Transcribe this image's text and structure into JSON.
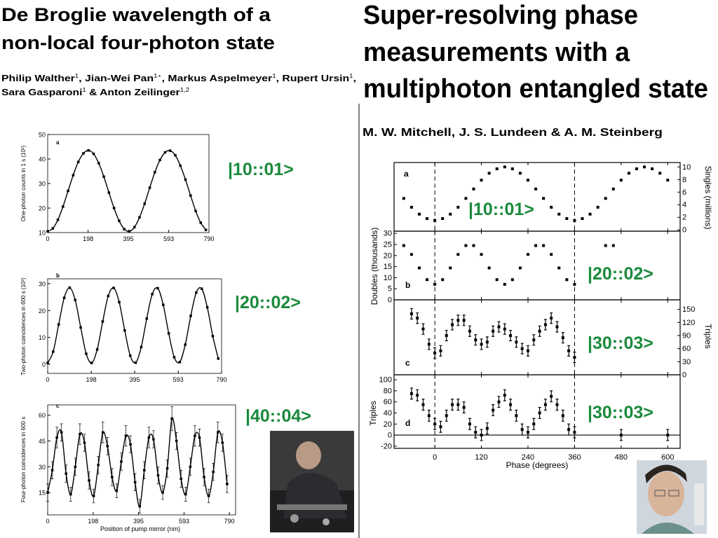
{
  "left": {
    "title": [
      "De Broglie wavelength of a",
      "non-local four-photon state"
    ],
    "authors": [
      [
        {
          "text": "Philip Walther",
          "sup": "1",
          "sep": ", "
        },
        {
          "text": "Jian-Wei Pan",
          "sup": "1⋆",
          "sep": ", "
        },
        {
          "text": "Markus Aspelmeyer",
          "sup": "1",
          "sep": ", "
        },
        {
          "text": "Rupert Ursin",
          "sup": "1",
          "sep": ","
        }
      ],
      [
        {
          "text": "Sara Gasparoni",
          "sup": "1",
          "sep": " & "
        },
        {
          "text": "Anton Zeilinger",
          "sup": "1,2",
          "sep": ""
        }
      ]
    ],
    "labels": [
      "|10::01>",
      "|20::02>",
      "|40::04>"
    ]
  },
  "right": {
    "title": [
      "Super-resolving phase",
      "measurements with a",
      "multiphoton entangled state"
    ],
    "authors": "M. W. Mitchell, J. S. Lundeen & A. M. Steinberg",
    "labels": [
      "|10::01>",
      "|20::02>",
      "|30::03>",
      "|30::03>"
    ]
  },
  "chart_data": [
    {
      "type": "line",
      "panel": "a",
      "ylabel": "One-photon counts in 1 s (10³)",
      "x": [
        0,
        25,
        50,
        75,
        100,
        125,
        150,
        175,
        200,
        225,
        250,
        275,
        300,
        325,
        350,
        375,
        400,
        425,
        450,
        475,
        500,
        525,
        550,
        575,
        600,
        625,
        650,
        675,
        700,
        725,
        750,
        775
      ],
      "values": [
        10.5,
        11.7,
        15.2,
        20.6,
        27,
        33.4,
        38.8,
        42.3,
        43.5,
        42.1,
        38.3,
        32.8,
        26.3,
        20,
        14.8,
        11.4,
        10.5,
        12.2,
        16.2,
        21.8,
        28.3,
        34.6,
        39.6,
        42.7,
        43.4,
        41.5,
        37.3,
        31.6,
        25.1,
        18.8,
        14,
        11.1
      ],
      "xlim": [
        0,
        790
      ],
      "ylim": [
        10,
        50
      ],
      "xticks": [
        0,
        198,
        395,
        593,
        790
      ],
      "yticks": [
        10,
        20,
        30,
        40,
        50
      ],
      "color": "#000000"
    },
    {
      "type": "line",
      "panel": "b",
      "ylabel": "Two-photon coincidences in 600 s (10³)",
      "x": [
        0,
        25,
        50,
        75,
        100,
        125,
        150,
        175,
        200,
        225,
        250,
        275,
        300,
        325,
        350,
        375,
        400,
        425,
        450,
        475,
        500,
        525,
        550,
        575,
        600,
        625,
        650,
        675,
        700,
        725,
        750,
        775
      ],
      "values": [
        0.5,
        4.7,
        14.8,
        24.7,
        28.5,
        23.9,
        13.7,
        3.9,
        0.5,
        5.5,
        15.9,
        25.4,
        28.4,
        23.1,
        12.6,
        3.2,
        0.6,
        6.4,
        17,
        26.1,
        28.3,
        22.1,
        11.5,
        2.6,
        0.8,
        7.3,
        18,
        26.7,
        28.1,
        21.2,
        10.5,
        2.1
      ],
      "xlim": [
        0,
        790
      ],
      "ylim": [
        -3.4,
        31.8
      ],
      "xticks": [
        0,
        198,
        395,
        593,
        790
      ],
      "yticks": [
        0,
        10,
        20,
        30
      ],
      "color": "#000000"
    },
    {
      "type": "line",
      "panel": "c",
      "ylabel": "Four-photon coincidences in 600 s",
      "xlabel": "Position of pump mirror (nm)",
      "x": [
        0,
        20,
        40,
        60,
        80,
        100,
        120,
        140,
        160,
        180,
        200,
        220,
        240,
        260,
        280,
        300,
        320,
        340,
        360,
        380,
        400,
        420,
        440,
        460,
        480,
        500,
        520,
        540,
        560,
        580,
        600,
        620,
        640,
        660,
        680,
        700,
        720,
        740,
        760,
        780
      ],
      "values": [
        15,
        28,
        47,
        50,
        26,
        14,
        30,
        49,
        44,
        22,
        13,
        31,
        50,
        42,
        24,
        16,
        33,
        48,
        43,
        21,
        7,
        28,
        47,
        46,
        25,
        15,
        29,
        58,
        45,
        23,
        14,
        30,
        48,
        47,
        24,
        13,
        27,
        50,
        44,
        20
      ],
      "errors": [
        5,
        5,
        6,
        5,
        5,
        4,
        5,
        6,
        5,
        5,
        4,
        5,
        6,
        5,
        5,
        4,
        5,
        6,
        5,
        5,
        4,
        5,
        6,
        5,
        5,
        4,
        5,
        7,
        5,
        5,
        4,
        5,
        6,
        5,
        5,
        4,
        5,
        6,
        5,
        5
      ],
      "xlim": [
        0,
        817
      ],
      "ylim": [
        2,
        66
      ],
      "xticks": [
        0,
        198,
        395,
        593,
        790
      ],
      "yticks": [
        15,
        30,
        45,
        60
      ],
      "color": "#000000"
    },
    {
      "type": "scatter",
      "panel": "a",
      "ylabel": "Singles (millions)",
      "yaxis": "right",
      "show_xtick_labels": false,
      "x": [
        -80,
        -60,
        -40,
        -20,
        0,
        20,
        40,
        60,
        80,
        100,
        120,
        140,
        160,
        180,
        200,
        220,
        240,
        260,
        280,
        300,
        320,
        340,
        360,
        380,
        400,
        420,
        440,
        460,
        480,
        500,
        520,
        540,
        560,
        580,
        600
      ],
      "values": [
        5,
        3.6,
        2.5,
        1.8,
        1.5,
        1.8,
        2.5,
        3.6,
        5,
        6.5,
        7.9,
        9,
        9.7,
        10,
        9.7,
        9,
        7.9,
        6.5,
        5,
        3.6,
        2.5,
        1.8,
        1.5,
        1.8,
        2.5,
        3.6,
        5,
        6.5,
        7.9,
        9,
        9.7,
        10,
        9.7,
        9,
        7.9
      ],
      "xlim": [
        -105,
        632
      ],
      "ylim": [
        -0.2,
        10.7
      ],
      "xticks": [
        0,
        120,
        240,
        360,
        480,
        600
      ],
      "yticks": [
        0,
        2,
        4,
        6,
        8,
        10
      ],
      "vlines": [
        0,
        360
      ],
      "color": "#000000"
    },
    {
      "type": "scatter",
      "panel": "b",
      "ylabel": "Doubles (thousands)",
      "yaxis": "left",
      "show_xtick_labels": false,
      "x": [
        -80,
        -60,
        -40,
        -20,
        0,
        20,
        40,
        60,
        80,
        100,
        120,
        140,
        160,
        180,
        200,
        220,
        240,
        260,
        280,
        300,
        320,
        340,
        360,
        440,
        460
      ],
      "values": [
        24.5,
        20.5,
        14.4,
        9.1,
        7,
        9.1,
        14.4,
        20.5,
        24.5,
        24.5,
        20.5,
        14.4,
        9.1,
        7,
        9.1,
        14.4,
        20.5,
        24.5,
        24.5,
        20.5,
        14.4,
        9.1,
        7,
        24.5,
        24.5
      ],
      "xlim": [
        -105,
        632
      ],
      "ylim": [
        0,
        31
      ],
      "xticks": [
        0,
        120,
        240,
        360,
        480,
        600
      ],
      "yticks": [
        0,
        5,
        10,
        15,
        20,
        25,
        30
      ],
      "vlines": [
        0,
        360
      ],
      "color": "#000000"
    },
    {
      "type": "scatter",
      "panel": "c",
      "ylabel": "Triples",
      "yaxis": "right",
      "show_xtick_labels": false,
      "x": [
        -60,
        -45,
        -30,
        -15,
        0,
        15,
        30,
        45,
        60,
        75,
        90,
        105,
        120,
        135,
        150,
        165,
        180,
        195,
        210,
        225,
        240,
        255,
        270,
        285,
        300,
        315,
        330,
        345,
        360
      ],
      "values": [
        140,
        130,
        105,
        70,
        50,
        55,
        90,
        115,
        125,
        125,
        100,
        80,
        70,
        75,
        100,
        110,
        105,
        90,
        75,
        60,
        55,
        80,
        100,
        115,
        130,
        110,
        85,
        55,
        40
      ],
      "errors": [
        12,
        12,
        12,
        12,
        12,
        12,
        12,
        12,
        12,
        12,
        12,
        12,
        12,
        12,
        12,
        12,
        12,
        12,
        12,
        12,
        12,
        12,
        12,
        12,
        12,
        12,
        12,
        12,
        12
      ],
      "xlim": [
        -105,
        632
      ],
      "ylim": [
        0,
        172
      ],
      "xticks": [
        0,
        120,
        240,
        360,
        480,
        600
      ],
      "yticks": [
        0,
        30,
        60,
        90,
        120,
        150
      ],
      "vlines": [
        0,
        360
      ],
      "color": "#000000"
    },
    {
      "type": "scatter",
      "panel": "d",
      "ylabel": "Triples",
      "yaxis": "left",
      "xlabel": "Phase (degrees)",
      "zero_line": true,
      "x": [
        -60,
        -45,
        -30,
        -15,
        0,
        15,
        30,
        45,
        60,
        75,
        90,
        105,
        120,
        135,
        150,
        165,
        180,
        195,
        210,
        225,
        240,
        255,
        270,
        285,
        300,
        315,
        330,
        345,
        360,
        480,
        600
      ],
      "values": [
        75,
        72,
        55,
        35,
        20,
        15,
        35,
        55,
        55,
        50,
        20,
        5,
        0,
        12,
        45,
        60,
        72,
        55,
        35,
        10,
        5,
        20,
        40,
        55,
        70,
        55,
        35,
        10,
        5,
        0,
        0
      ],
      "errors": [
        10,
        10,
        10,
        10,
        10,
        10,
        10,
        10,
        10,
        10,
        10,
        10,
        10,
        10,
        10,
        10,
        10,
        10,
        10,
        10,
        10,
        10,
        10,
        10,
        10,
        10,
        10,
        10,
        10,
        10,
        10
      ],
      "xlim": [
        -105,
        632
      ],
      "ylim": [
        -24,
        109
      ],
      "xticks": [
        0,
        120,
        240,
        360,
        480,
        600
      ],
      "yticks": [
        -20,
        0,
        20,
        40,
        60,
        80,
        100
      ],
      "vlines": [
        0,
        360
      ],
      "color": "#000000"
    }
  ]
}
